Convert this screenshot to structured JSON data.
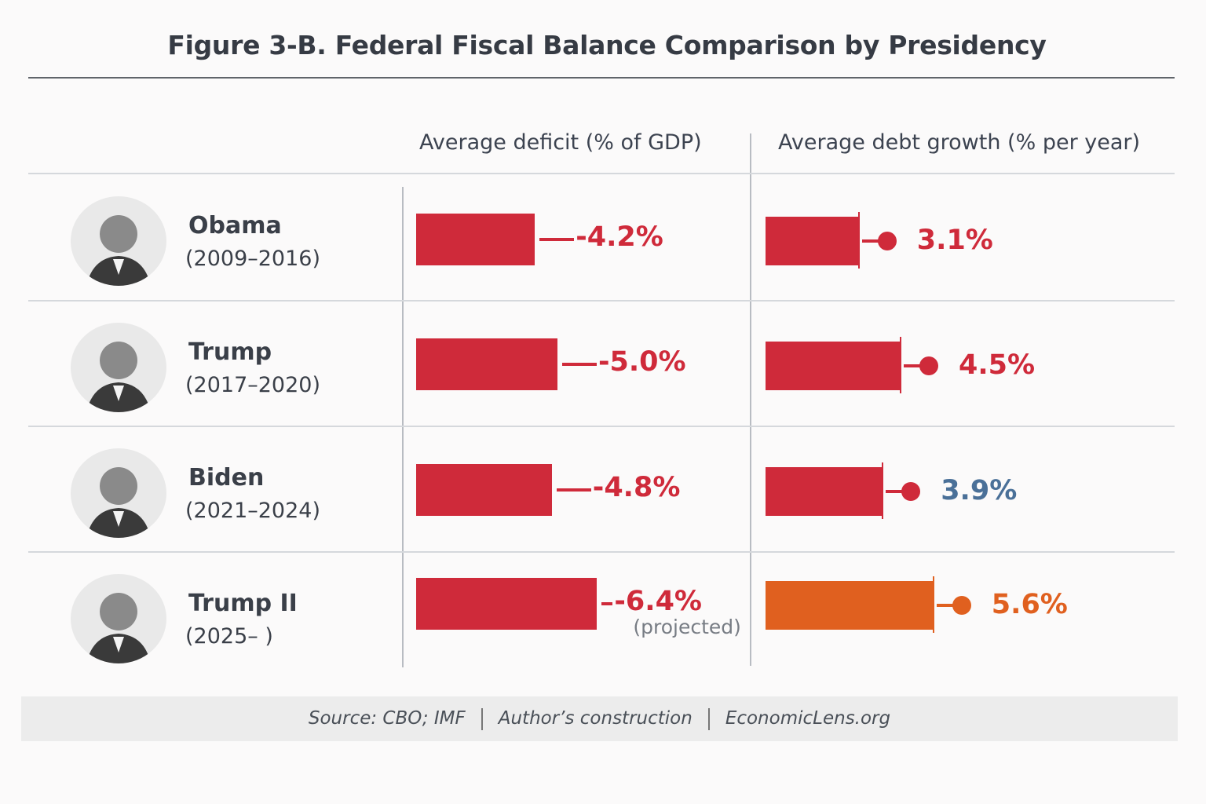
{
  "chart_data": {
    "type": "bar",
    "title": "Figure 3-B. Federal Fiscal Balance Comparison by Presidency",
    "columns": [
      "Average deficit (% of GDP)",
      "Average debt growth (% per year)"
    ],
    "rows": [
      {
        "name": "Obama",
        "years": "(2009–2016)",
        "deficit": -4.2,
        "deficit_label": "-4.2%",
        "debt_growth": 3.1,
        "debt_label": "3.1%",
        "debt_label_color": "#cf2a3a",
        "bar_color": "#cf2a3a",
        "note": ""
      },
      {
        "name": "Trump",
        "years": "(2017–2020)",
        "deficit": -5.0,
        "deficit_label": "-5.0%",
        "debt_growth": 4.5,
        "debt_label": "4.5%",
        "debt_label_color": "#cf2a3a",
        "bar_color": "#cf2a3a",
        "note": ""
      },
      {
        "name": "Biden",
        "years": "(2021–2024)",
        "deficit": -4.8,
        "deficit_label": "-4.8%",
        "debt_growth": 3.9,
        "debt_label": "3.9%",
        "debt_label_color": "#4a7098",
        "bar_color": "#cf2a3a",
        "note": ""
      },
      {
        "name": "Trump II",
        "years": "(2025– )",
        "deficit": -6.4,
        "deficit_label": "-6.4%",
        "debt_growth": 5.6,
        "debt_label": "5.6%",
        "debt_label_color": "#e0601f",
        "bar_color": "#e0601f",
        "note": "(projected)"
      }
    ],
    "colors": {
      "deficit": "#cf2a3a",
      "debt": "#cf2a3a",
      "projected_debt": "#e0601f"
    }
  },
  "footer": {
    "source": "Source: CBO; IMF",
    "credit": "Author’s construction",
    "site": "EconomicLens.org"
  }
}
